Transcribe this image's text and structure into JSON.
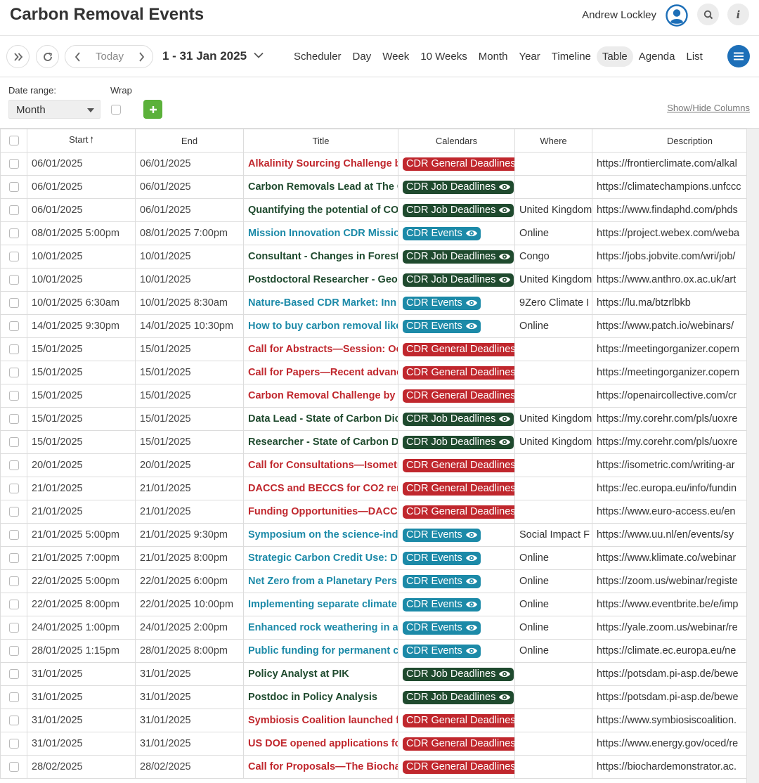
{
  "header": {
    "title": "Carbon Removal Events",
    "user_name": "Andrew Lockley"
  },
  "toolbar": {
    "today_label": "Today",
    "date_range": "1 - 31 Jan 2025",
    "views": [
      "Scheduler",
      "Day",
      "Week",
      "10 Weeks",
      "Month",
      "Year",
      "Timeline",
      "Table",
      "Agenda",
      "List"
    ],
    "active_view": "Table"
  },
  "filters": {
    "date_range_label": "Date range:",
    "date_range_value": "Month",
    "wrap_label": "Wrap",
    "show_hide_label": "Show/Hide Columns"
  },
  "colors": {
    "general": "#c0272d",
    "job": "#1f4a2e",
    "events": "#1c8aa8",
    "accent": "#1d6fb8",
    "add": "#5bb13a"
  },
  "table": {
    "columns": [
      "Start",
      "End",
      "Title",
      "Calendars",
      "Where",
      "Description"
    ],
    "sort_column": "Start",
    "rows": [
      {
        "start": "06/01/2025",
        "end": "06/01/2025",
        "title": "Alkalinity Sourcing Challenge b",
        "calendar": "CDR General Deadlines",
        "type": "general",
        "where": "",
        "desc": "https://frontierclimate.com/alkal"
      },
      {
        "start": "06/01/2025",
        "end": "06/01/2025",
        "title": "Carbon Removals Lead at The C",
        "calendar": "CDR Job Deadlines",
        "type": "job",
        "where": "",
        "desc": "https://climatechampions.unfccc"
      },
      {
        "start": "06/01/2025",
        "end": "06/01/2025",
        "title": "Quantifying the potential of CO",
        "calendar": "CDR Job Deadlines",
        "type": "job",
        "where": "United Kingdom",
        "desc": "https://www.findaphd.com/phds"
      },
      {
        "start": "08/01/2025 5:00pm",
        "end": "08/01/2025 7:00pm",
        "title": "Mission Innovation CDR Missior",
        "calendar": "CDR Events",
        "type": "events",
        "where": "Online",
        "desc": "https://project.webex.com/weba"
      },
      {
        "start": "10/01/2025",
        "end": "10/01/2025",
        "title": "Consultant - Changes in Forest",
        "calendar": "CDR Job Deadlines",
        "type": "job",
        "where": "Congo",
        "desc": "https://jobs.jobvite.com/wri/job/"
      },
      {
        "start": "10/01/2025",
        "end": "10/01/2025",
        "title": "Postdoctoral Researcher - Geo",
        "calendar": "CDR Job Deadlines",
        "type": "job",
        "where": "United Kingdom",
        "desc": "https://www.anthro.ox.ac.uk/art"
      },
      {
        "start": "10/01/2025 6:30am",
        "end": "10/01/2025 8:30am",
        "title": "Nature-Based CDR Market: Inn",
        "calendar": "CDR Events",
        "type": "events",
        "where": "9Zero Climate I",
        "desc": "https://lu.ma/btzrlbkb"
      },
      {
        "start": "14/01/2025 9:30pm",
        "end": "14/01/2025 10:30pm",
        "title": "How to buy carbon removal like",
        "calendar": "CDR Events",
        "type": "events",
        "where": "Online",
        "desc": "https://www.patch.io/webinars/"
      },
      {
        "start": "15/01/2025",
        "end": "15/01/2025",
        "title": "Call for Abstracts—Session: Oc",
        "calendar": "CDR General Deadlines",
        "type": "general",
        "where": "",
        "desc": "https://meetingorganizer.copern"
      },
      {
        "start": "15/01/2025",
        "end": "15/01/2025",
        "title": "Call for Papers—Recent advanc",
        "calendar": "CDR General Deadlines",
        "type": "general",
        "where": "",
        "desc": "https://meetingorganizer.copern"
      },
      {
        "start": "15/01/2025",
        "end": "15/01/2025",
        "title": "Carbon Removal Challenge by C",
        "calendar": "CDR General Deadlines",
        "type": "general",
        "where": "",
        "desc": "https://openaircollective.com/cr"
      },
      {
        "start": "15/01/2025",
        "end": "15/01/2025",
        "title": "Data Lead - State of Carbon Dic",
        "calendar": "CDR Job Deadlines",
        "type": "job",
        "where": "United Kingdom",
        "desc": "https://my.corehr.com/pls/uoxre"
      },
      {
        "start": "15/01/2025",
        "end": "15/01/2025",
        "title": "Researcher - State of Carbon D",
        "calendar": "CDR Job Deadlines",
        "type": "job",
        "where": "United Kingdom",
        "desc": "https://my.corehr.com/pls/uoxre"
      },
      {
        "start": "20/01/2025",
        "end": "20/01/2025",
        "title": "Call for Consultations—Isometr",
        "calendar": "CDR General Deadlines",
        "type": "general",
        "where": "",
        "desc": "https://isometric.com/writing-ar"
      },
      {
        "start": "21/01/2025",
        "end": "21/01/2025",
        "title": "DACCS and BECCS for CO2 ren",
        "calendar": "CDR General Deadlines",
        "type": "general",
        "where": "",
        "desc": "https://ec.europa.eu/info/fundin"
      },
      {
        "start": "21/01/2025",
        "end": "21/01/2025",
        "title": "Funding Opportunities—DACCS",
        "calendar": "CDR General Deadlines",
        "type": "general",
        "where": "",
        "desc": "https://www.euro-access.eu/en"
      },
      {
        "start": "21/01/2025 5:00pm",
        "end": "21/01/2025 9:30pm",
        "title": "Symposium on the science-ind",
        "calendar": "CDR Events",
        "type": "events",
        "where": "Social Impact F",
        "desc": "https://www.uu.nl/en/events/sy"
      },
      {
        "start": "21/01/2025 7:00pm",
        "end": "21/01/2025 8:00pm",
        "title": "Strategic Carbon Credit Use: Di",
        "calendar": "CDR Events",
        "type": "events",
        "where": "Online",
        "desc": "https://www.klimate.co/webinar"
      },
      {
        "start": "22/01/2025 5:00pm",
        "end": "22/01/2025 6:00pm",
        "title": "Net Zero from a Planetary Pers",
        "calendar": "CDR Events",
        "type": "events",
        "where": "Online",
        "desc": "https://zoom.us/webinar/registe"
      },
      {
        "start": "22/01/2025 8:00pm",
        "end": "22/01/2025 10:00pm",
        "title": "Implementing separate climate",
        "calendar": "CDR Events",
        "type": "events",
        "where": "Online",
        "desc": "https://www.eventbrite.be/e/imp"
      },
      {
        "start": "24/01/2025 1:00pm",
        "end": "24/01/2025 2:00pm",
        "title": "Enhanced rock weathering in ag",
        "calendar": "CDR Events",
        "type": "events",
        "where": "Online",
        "desc": "https://yale.zoom.us/webinar/re"
      },
      {
        "start": "28/01/2025 1:15pm",
        "end": "28/01/2025 8:00pm",
        "title": "Public funding for permanent c",
        "calendar": "CDR Events",
        "type": "events",
        "where": "Online",
        "desc": "https://climate.ec.europa.eu/ne"
      },
      {
        "start": "31/01/2025",
        "end": "31/01/2025",
        "title": "Policy Analyst at PIK",
        "calendar": "CDR Job Deadlines",
        "type": "job",
        "where": "",
        "desc": "https://potsdam.pi-asp.de/bewe"
      },
      {
        "start": "31/01/2025",
        "end": "31/01/2025",
        "title": "Postdoc in Policy Analysis",
        "calendar": "CDR Job Deadlines",
        "type": "job",
        "where": "",
        "desc": "https://potsdam.pi-asp.de/bewe"
      },
      {
        "start": "31/01/2025",
        "end": "31/01/2025",
        "title": "Symbiosis Coalition launched f",
        "calendar": "CDR General Deadlines",
        "type": "general",
        "where": "",
        "desc": "https://www.symbiosiscoalition."
      },
      {
        "start": "31/01/2025",
        "end": "31/01/2025",
        "title": "US DOE opened applications fo",
        "calendar": "CDR General Deadlines",
        "type": "general",
        "where": "",
        "desc": "https://www.energy.gov/oced/re"
      },
      {
        "start": "28/02/2025",
        "end": "28/02/2025",
        "title": "Call for Proposals—The Biocha",
        "calendar": "CDR General Deadlines",
        "type": "general",
        "where": "",
        "desc": "https://biochardemonstrator.ac."
      }
    ]
  }
}
